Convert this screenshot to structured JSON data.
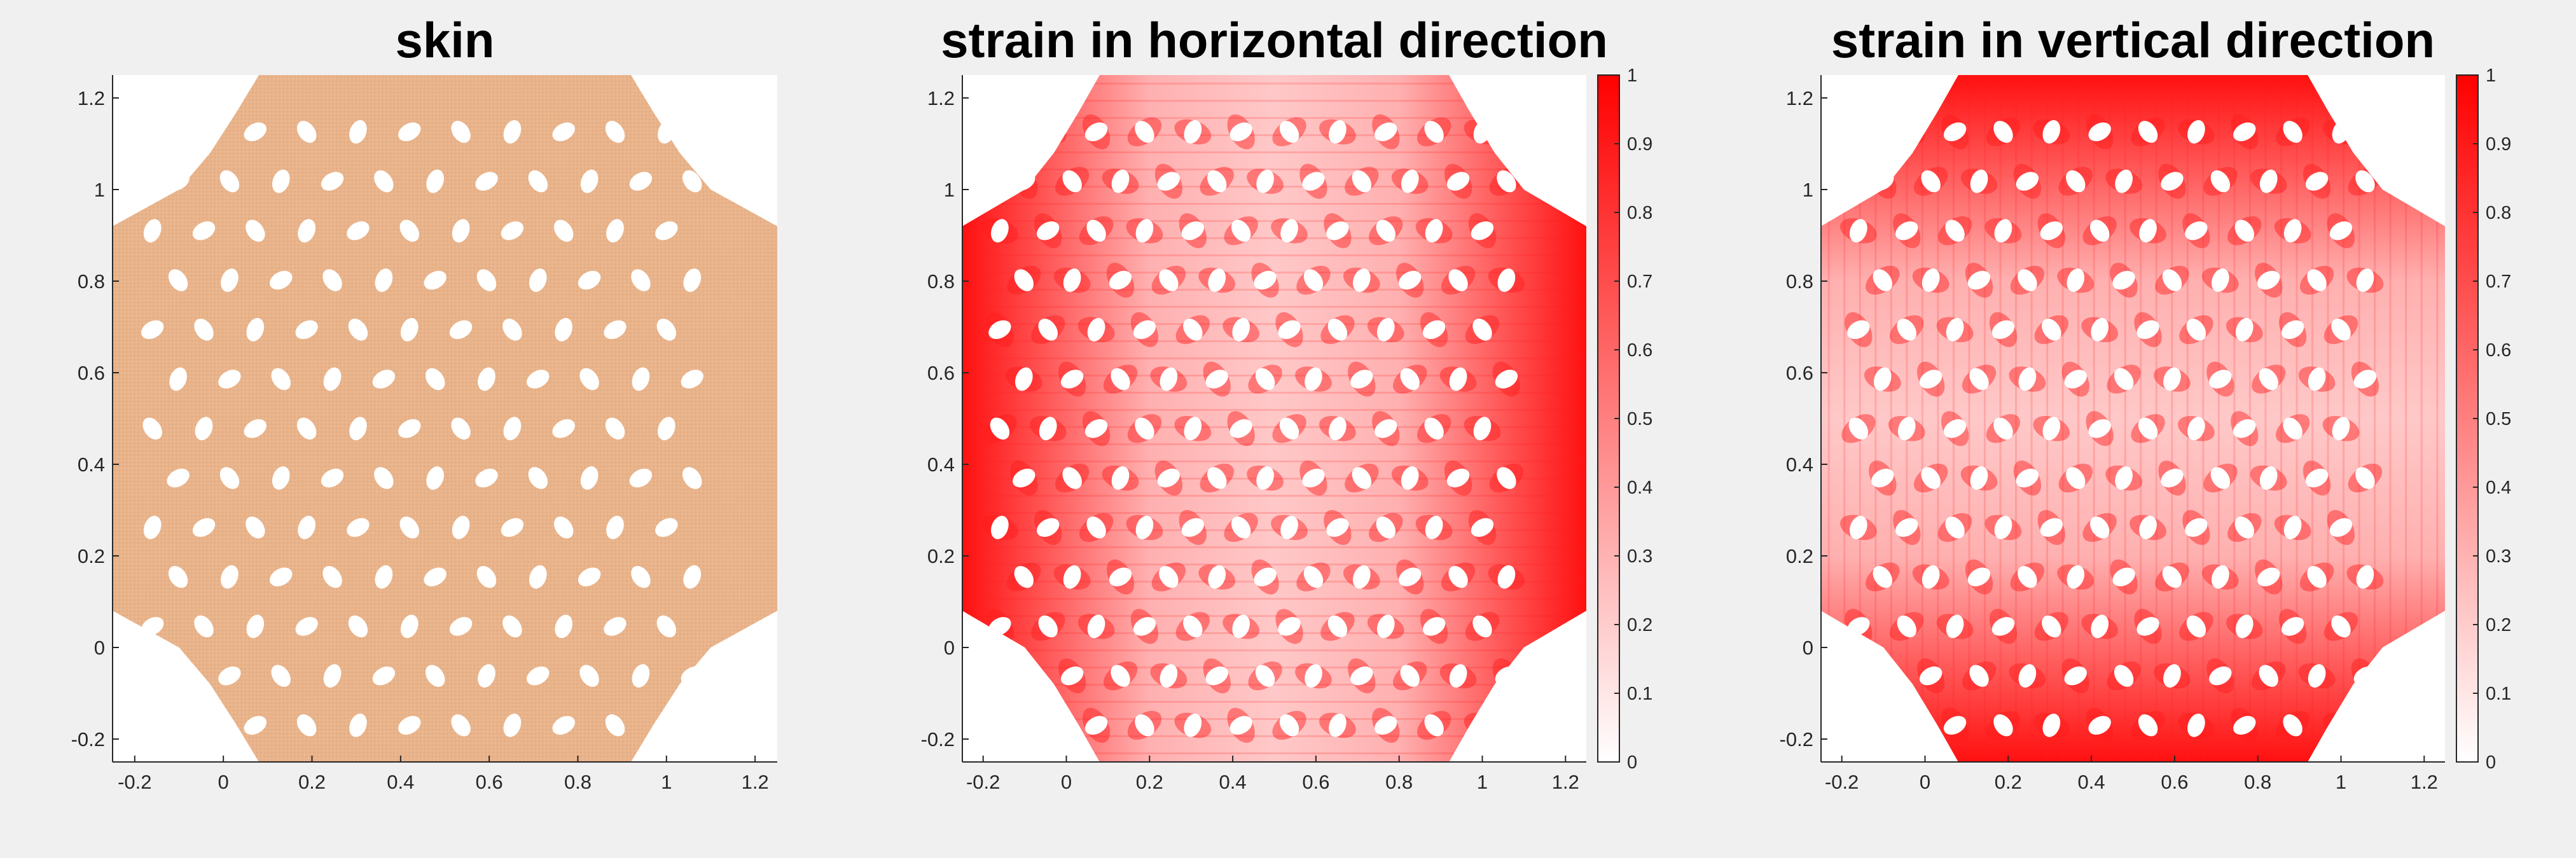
{
  "colors": {
    "background": "#f0f0f0",
    "skin": "#e9b48b",
    "strain_high": "#ff0000",
    "strain_low": "#ffffff",
    "axis": "#262626"
  },
  "chart_data": [
    {
      "type": "heatmap",
      "title": "skin",
      "xlabel": "",
      "ylabel": "",
      "xlim": [
        -0.25,
        1.25
      ],
      "ylim": [
        -0.25,
        1.25
      ],
      "xticks": [
        -0.2,
        0,
        0.2,
        0.4,
        0.6,
        0.8,
        1,
        1.2
      ],
      "xtick_labels": [
        "-0.2",
        "0",
        "0.2",
        "0.4",
        "0.6",
        "0.8",
        "1",
        "1.2"
      ],
      "yticks": [
        1.2,
        1,
        0.8,
        0.6,
        0.4,
        0.2,
        0,
        -0.2
      ],
      "ytick_labels": [
        "1.2",
        "1",
        "0.8",
        "0.6",
        "0.4",
        "0.2",
        "0",
        "-0.2"
      ],
      "colormap": "skin-tone",
      "colorbar": false,
      "region": "octagonal deformed skin sheet with elliptical perforations",
      "shape_boundary": [
        [
          0.08,
          -0.25
        ],
        [
          0.92,
          -0.25
        ],
        [
          0.97,
          -0.17
        ],
        [
          1.03,
          -0.08
        ],
        [
          1.1,
          0.0
        ],
        [
          1.25,
          0.08
        ],
        [
          1.25,
          0.92
        ],
        [
          1.1,
          1.0
        ],
        [
          1.03,
          1.08
        ],
        [
          0.97,
          1.17
        ],
        [
          0.92,
          1.25
        ],
        [
          0.08,
          1.25
        ],
        [
          0.03,
          1.17
        ],
        [
          -0.03,
          1.08
        ],
        [
          -0.1,
          1.0
        ],
        [
          -0.25,
          0.92
        ],
        [
          -0.25,
          0.08
        ],
        [
          -0.1,
          0.0
        ],
        [
          -0.03,
          -0.08
        ],
        [
          0.03,
          -0.17
        ]
      ]
    },
    {
      "type": "heatmap",
      "title": "strain in horizontal direction",
      "xlabel": "",
      "ylabel": "",
      "xlim": [
        -0.25,
        1.25
      ],
      "ylim": [
        -0.25,
        1.25
      ],
      "xticks": [
        -0.2,
        0,
        0.2,
        0.4,
        0.6,
        0.8,
        1,
        1.2
      ],
      "xtick_labels": [
        "-0.2",
        "0",
        "0.2",
        "0.4",
        "0.6",
        "0.8",
        "1",
        "1.2"
      ],
      "yticks": [
        1.2,
        1,
        0.8,
        0.6,
        0.4,
        0.2,
        0,
        -0.2
      ],
      "ytick_labels": [
        "1.2",
        "1",
        "0.8",
        "0.6",
        "0.4",
        "0.2",
        "0",
        "-0.2"
      ],
      "colormap": "white-to-red",
      "direction": "horizontal",
      "colorbar": true,
      "clim": [
        0,
        1
      ],
      "colorbar_ticks": [
        1,
        0.9,
        0.8,
        0.7,
        0.6,
        0.5,
        0.4,
        0.3,
        0.2,
        0.1,
        0
      ],
      "colorbar_tick_labels": [
        "1",
        "0.9",
        "0.8",
        "0.7",
        "0.6",
        "0.5",
        "0.4",
        "0.3",
        "0.2",
        "0.1",
        "0"
      ],
      "high_strain_regions": "left and right edges"
    },
    {
      "type": "heatmap",
      "title": "strain in vertical direction",
      "xlabel": "",
      "ylabel": "",
      "xlim": [
        -0.25,
        1.25
      ],
      "ylim": [
        -0.25,
        1.25
      ],
      "xticks": [
        -0.2,
        0,
        0.2,
        0.4,
        0.6,
        0.8,
        1,
        1.2
      ],
      "xtick_labels": [
        "-0.2",
        "0",
        "0.2",
        "0.4",
        "0.6",
        "0.8",
        "1",
        "1.2"
      ],
      "yticks": [
        1.2,
        1,
        0.8,
        0.6,
        0.4,
        0.2,
        0,
        -0.2
      ],
      "ytick_labels": [
        "1.2",
        "1",
        "0.8",
        "0.6",
        "0.4",
        "0.2",
        "0",
        "-0.2"
      ],
      "colormap": "white-to-red",
      "direction": "vertical",
      "colorbar": true,
      "clim": [
        0,
        1
      ],
      "colorbar_ticks": [
        1,
        0.9,
        0.8,
        0.7,
        0.6,
        0.5,
        0.4,
        0.3,
        0.2,
        0.1,
        0
      ],
      "colorbar_tick_labels": [
        "1",
        "0.9",
        "0.8",
        "0.7",
        "0.6",
        "0.5",
        "0.4",
        "0.3",
        "0.2",
        "0.1",
        "0"
      ],
      "high_strain_regions": "top and bottom edges"
    }
  ]
}
